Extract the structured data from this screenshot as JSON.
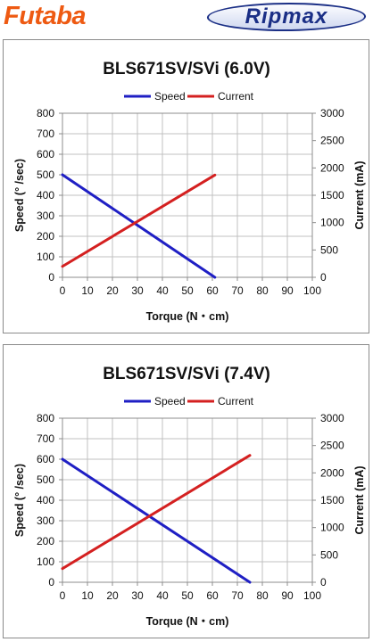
{
  "header": {
    "brand_left": "Futaba",
    "brand_right": "Ripmax"
  },
  "colors": {
    "speed": "#1f1fc4",
    "current": "#d42020",
    "grid": "#c0c0c0"
  },
  "chart_data": [
    {
      "type": "line",
      "title": "BLS671SV/SVi (6.0V)",
      "xlabel": "Torque (N・cm)",
      "ylabel": "Speed (° /sec)",
      "y2label": "Current (mA)",
      "xlim": [
        0,
        100
      ],
      "ylim": [
        0,
        800
      ],
      "y2lim": [
        0,
        3000
      ],
      "xticks": [
        0,
        10,
        20,
        30,
        40,
        50,
        60,
        70,
        80,
        90,
        100
      ],
      "yticks": [
        0,
        100,
        200,
        300,
        400,
        500,
        600,
        700,
        800
      ],
      "y2ticks": [
        0,
        500,
        1000,
        1500,
        2000,
        2500,
        3000
      ],
      "grid": true,
      "legend": "top-center",
      "series": [
        {
          "name": "Speed",
          "axis": "left",
          "x": [
            0,
            61
          ],
          "y": [
            500,
            0
          ]
        },
        {
          "name": "Current",
          "axis": "right",
          "x": [
            0,
            61
          ],
          "y": [
            200,
            1870
          ]
        }
      ]
    },
    {
      "type": "line",
      "title": "BLS671SV/SVi (7.4V)",
      "xlabel": "Torque (N・cm)",
      "ylabel": "Speed (° /sec)",
      "y2label": "Current (mA)",
      "xlim": [
        0,
        100
      ],
      "ylim": [
        0,
        800
      ],
      "y2lim": [
        0,
        3000
      ],
      "xticks": [
        0,
        10,
        20,
        30,
        40,
        50,
        60,
        70,
        80,
        90,
        100
      ],
      "yticks": [
        0,
        100,
        200,
        300,
        400,
        500,
        600,
        700,
        800
      ],
      "y2ticks": [
        0,
        500,
        1000,
        1500,
        2000,
        2500,
        3000
      ],
      "grid": true,
      "legend": "top-center",
      "series": [
        {
          "name": "Speed",
          "axis": "left",
          "x": [
            0,
            75
          ],
          "y": [
            600,
            0
          ]
        },
        {
          "name": "Current",
          "axis": "right",
          "x": [
            0,
            75
          ],
          "y": [
            250,
            2320
          ]
        }
      ]
    }
  ]
}
